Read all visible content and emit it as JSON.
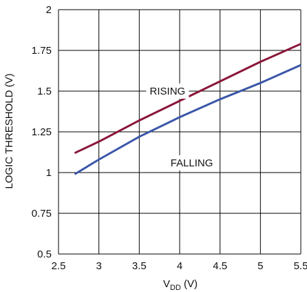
{
  "chart_data": {
    "type": "line",
    "title": "",
    "xlabel_main": "V",
    "xlabel_sub": "DD",
    "xlabel_unit": " (V)",
    "ylabel": "LOGIC THRESHOLD (V)",
    "xlim": [
      2.5,
      5.5
    ],
    "ylim": [
      0.5,
      2
    ],
    "x_ticks": [
      2.5,
      3,
      3.5,
      4,
      4.5,
      5,
      5.5
    ],
    "x_tick_labels": [
      "2.5",
      "3",
      "3.5",
      "4",
      "4.5",
      "5",
      "5.5"
    ],
    "y_ticks": [
      0.5,
      0.75,
      1,
      1.25,
      1.5,
      1.75,
      2
    ],
    "y_tick_labels": [
      "0.5",
      "0.75",
      "1",
      "1.25",
      "1.5",
      "1.75",
      "2"
    ],
    "grid": true,
    "legend": "inline labels",
    "colors": {
      "rising": "#8a1538",
      "falling": "#3a56a8",
      "grid": "#000000"
    },
    "series": [
      {
        "name": "RISING",
        "x": [
          2.7,
          3.0,
          3.5,
          4.0,
          4.5,
          5.0,
          5.5
        ],
        "values": [
          1.12,
          1.19,
          1.32,
          1.44,
          1.56,
          1.68,
          1.79
        ]
      },
      {
        "name": "FALLING",
        "x": [
          2.7,
          3.0,
          3.5,
          4.0,
          4.5,
          5.0,
          5.5
        ],
        "values": [
          0.99,
          1.08,
          1.22,
          1.34,
          1.45,
          1.55,
          1.66
        ]
      }
    ]
  }
}
